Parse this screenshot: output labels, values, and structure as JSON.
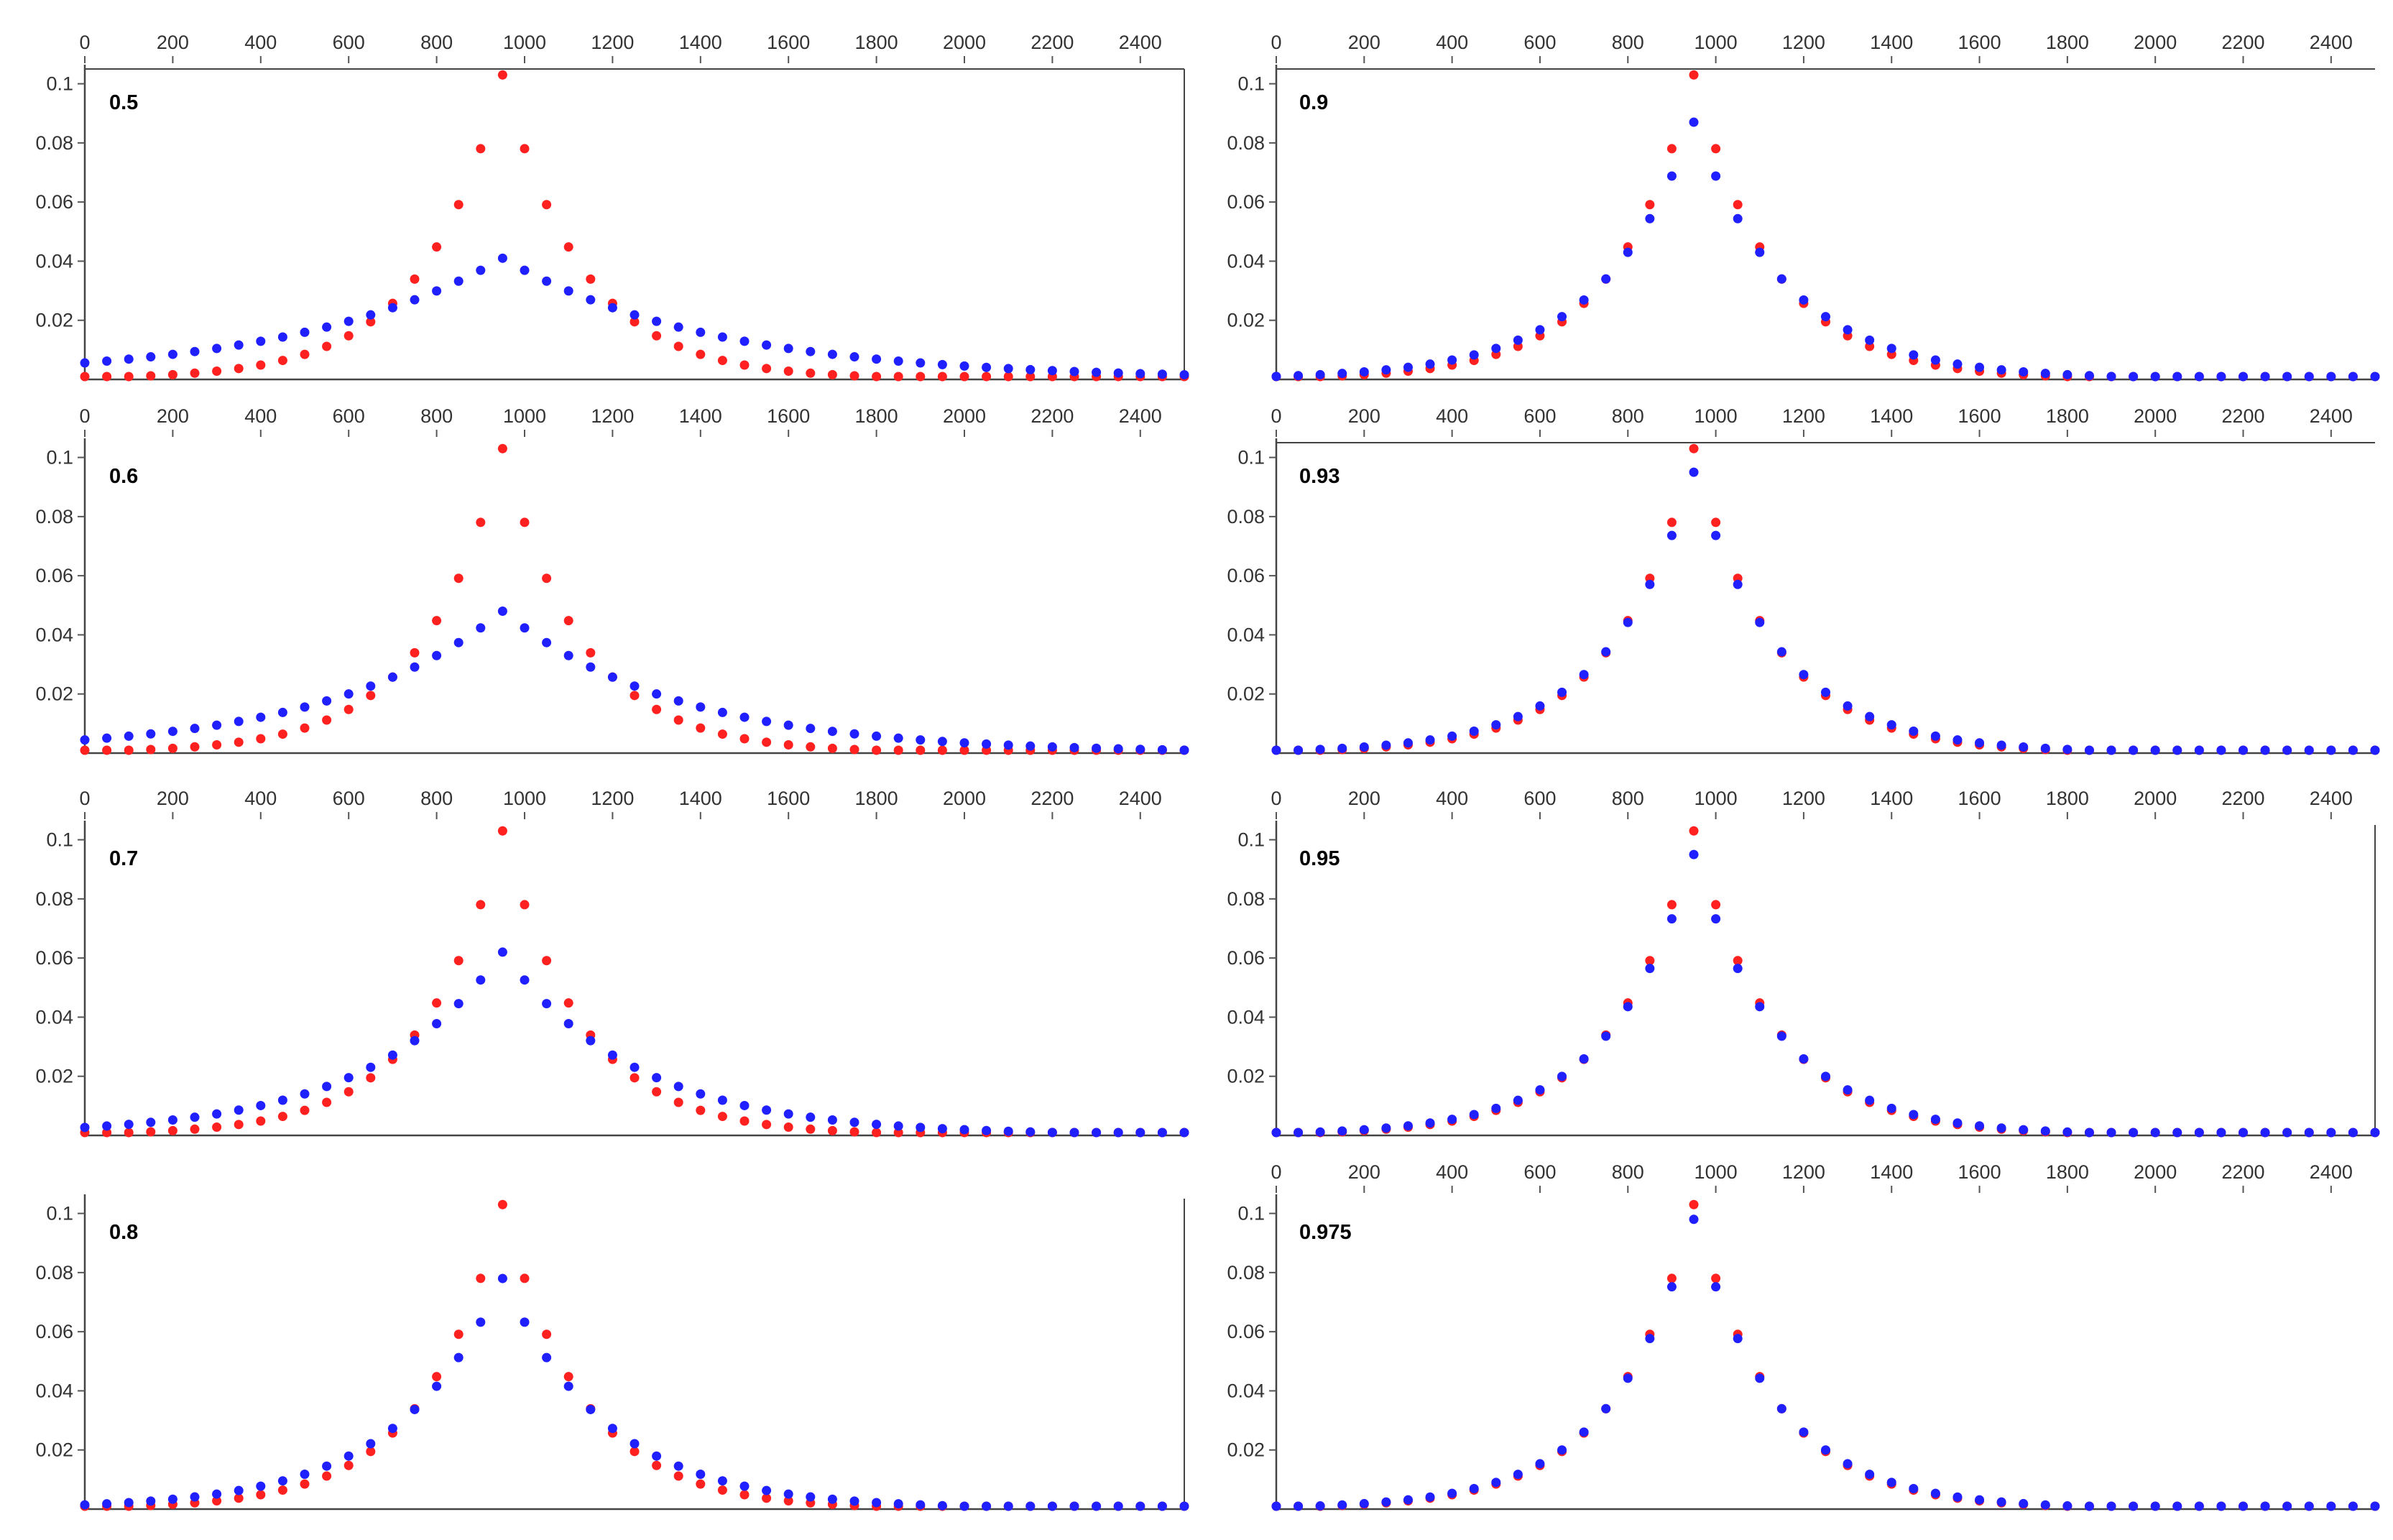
{
  "figure": {
    "description_title": "",
    "colors": {
      "series_a": "#ff2020",
      "series_b": "#1f1fff",
      "axis": "#444444"
    }
  },
  "chart_data": [
    {
      "type": "scatter",
      "title": "",
      "panel_label": "0.5",
      "frame": "top-right",
      "xlabel": "",
      "ylabel": "",
      "xlim": [
        0,
        2500
      ],
      "ylim": [
        0,
        0.105
      ],
      "xticks": [
        "0",
        "200",
        "400",
        "600",
        "800",
        "1000",
        "1200",
        "1400",
        "1600",
        "1800",
        "2000",
        "2200",
        "2400"
      ],
      "yticks": [
        "0.1",
        "0.08",
        "0.06",
        "0.04",
        "0.02"
      ],
      "series": [
        {
          "name": "red",
          "color": "#ff2020",
          "peak": 0.103,
          "decay": 0.00555
        },
        {
          "name": "blue",
          "color": "#1f1fff",
          "peak": 0.041,
          "decay": 0.0021
        }
      ]
    },
    {
      "type": "scatter",
      "title": "",
      "panel_label": "0.6",
      "frame": "none",
      "xlabel": "",
      "ylabel": "",
      "xlim": [
        0,
        2500
      ],
      "ylim": [
        0,
        0.105
      ],
      "xticks": [
        "0",
        "200",
        "400",
        "600",
        "800",
        "1000",
        "1200",
        "1400",
        "1600",
        "1800",
        "2000",
        "2200",
        "2400"
      ],
      "yticks": [
        "0.1",
        "0.08",
        "0.06",
        "0.04",
        "0.02"
      ],
      "series": [
        {
          "name": "red",
          "color": "#ff2020",
          "peak": 0.103,
          "decay": 0.00555
        },
        {
          "name": "blue",
          "color": "#1f1fff",
          "peak": 0.048,
          "decay": 0.0025
        }
      ]
    },
    {
      "type": "scatter",
      "title": "",
      "panel_label": "0.7",
      "frame": "none",
      "xlabel": "",
      "ylabel": "",
      "xlim": [
        0,
        2500
      ],
      "ylim": [
        0,
        0.105
      ],
      "xticks": [
        "0",
        "200",
        "400",
        "600",
        "800",
        "1000",
        "1200",
        "1400",
        "1600",
        "1800",
        "2000",
        "2200",
        "2400"
      ],
      "yticks": [
        "0.1",
        "0.08",
        "0.06",
        "0.04",
        "0.02"
      ],
      "series": [
        {
          "name": "red",
          "color": "#ff2020",
          "peak": 0.103,
          "decay": 0.00555
        },
        {
          "name": "blue",
          "color": "#1f1fff",
          "peak": 0.062,
          "decay": 0.0033
        }
      ]
    },
    {
      "type": "scatter",
      "title": "",
      "panel_label": "0.8",
      "frame": "right",
      "xlabel": "",
      "ylabel": "",
      "xlim": [
        0,
        2500
      ],
      "ylim": [
        0,
        0.105
      ],
      "xticks": [],
      "yticks": [
        "0.1",
        "0.08",
        "0.06",
        "0.04",
        "0.02"
      ],
      "series": [
        {
          "name": "red",
          "color": "#ff2020",
          "peak": 0.103,
          "decay": 0.00555
        },
        {
          "name": "blue",
          "color": "#1f1fff",
          "peak": 0.078,
          "decay": 0.0042
        }
      ]
    },
    {
      "type": "scatter",
      "title": "",
      "panel_label": "0.9",
      "frame": "top",
      "xlabel": "",
      "ylabel": "",
      "xlim": [
        0,
        2500
      ],
      "ylim": [
        0,
        0.105
      ],
      "xticks": [
        "0",
        "200",
        "400",
        "600",
        "800",
        "1000",
        "1200",
        "1400",
        "1600",
        "1800",
        "2000",
        "2200",
        "2400"
      ],
      "yticks": [
        "0.1",
        "0.08",
        "0.06",
        "0.04",
        "0.02"
      ],
      "series": [
        {
          "name": "red",
          "color": "#ff2020",
          "peak": 0.103,
          "decay": 0.00555
        },
        {
          "name": "blue",
          "color": "#1f1fff",
          "peak": 0.087,
          "decay": 0.0047
        }
      ]
    },
    {
      "type": "scatter",
      "title": "",
      "panel_label": "0.93",
      "frame": "top",
      "xlabel": "",
      "ylabel": "",
      "xlim": [
        0,
        2500
      ],
      "ylim": [
        0,
        0.105
      ],
      "xticks": [
        "0",
        "200",
        "400",
        "600",
        "800",
        "1000",
        "1200",
        "1400",
        "1600",
        "1800",
        "2000",
        "2200",
        "2400"
      ],
      "yticks": [
        "0.1",
        "0.08",
        "0.06",
        "0.04",
        "0.02"
      ],
      "series": [
        {
          "name": "red",
          "color": "#ff2020",
          "peak": 0.103,
          "decay": 0.00555
        },
        {
          "name": "blue",
          "color": "#1f1fff",
          "peak": 0.095,
          "decay": 0.0051
        }
      ]
    },
    {
      "type": "scatter",
      "title": "",
      "panel_label": "0.95",
      "frame": "right",
      "xlabel": "",
      "ylabel": "",
      "xlim": [
        0,
        2500
      ],
      "ylim": [
        0,
        0.105
      ],
      "xticks": [
        "0",
        "200",
        "400",
        "600",
        "800",
        "1000",
        "1200",
        "1400",
        "1600",
        "1800",
        "2000",
        "2200",
        "2400"
      ],
      "yticks": [
        "0.1",
        "0.08",
        "0.06",
        "0.04",
        "0.02"
      ],
      "series": [
        {
          "name": "red",
          "color": "#ff2020",
          "peak": 0.103,
          "decay": 0.00555
        },
        {
          "name": "blue",
          "color": "#1f1fff",
          "peak": 0.095,
          "decay": 0.0052
        }
      ]
    },
    {
      "type": "scatter",
      "title": "",
      "panel_label": "0.975",
      "frame": "none",
      "xlabel": "",
      "ylabel": "",
      "xlim": [
        0,
        2500
      ],
      "ylim": [
        0,
        0.105
      ],
      "xticks": [
        "0",
        "200",
        "400",
        "600",
        "800",
        "1000",
        "1200",
        "1400",
        "1600",
        "1800",
        "2000",
        "2200",
        "2400"
      ],
      "yticks": [
        "0.1",
        "0.08",
        "0.06",
        "0.04",
        "0.02"
      ],
      "series": [
        {
          "name": "red",
          "color": "#ff2020",
          "peak": 0.103,
          "decay": 0.00555
        },
        {
          "name": "blue",
          "color": "#1f1fff",
          "peak": 0.098,
          "decay": 0.0053
        }
      ]
    }
  ]
}
